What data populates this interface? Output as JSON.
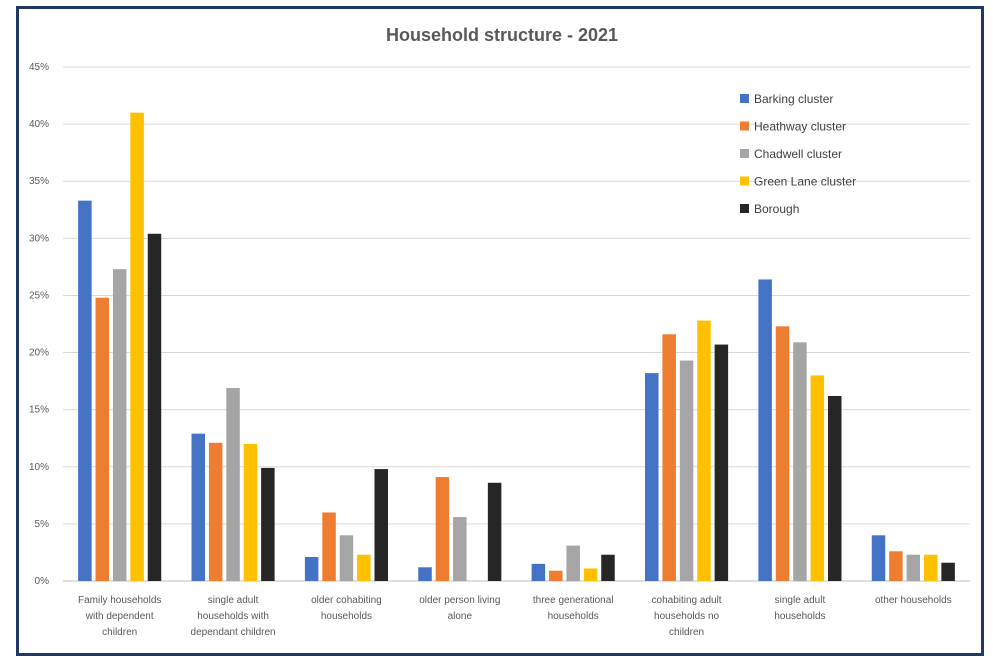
{
  "chart_data": {
    "type": "bar",
    "title": "Household structure - 2021",
    "xlabel": "",
    "ylabel": "",
    "ylim": [
      0,
      45
    ],
    "yticks": [
      "0%",
      "5%",
      "10%",
      "15%",
      "20%",
      "25%",
      "30%",
      "35%",
      "40%",
      "45%"
    ],
    "grid": true,
    "legend_position": "top-right",
    "categories": [
      [
        "Family households",
        "with dependent",
        "children"
      ],
      [
        "single adult",
        "households with",
        "dependant children"
      ],
      [
        "older cohabiting",
        "households"
      ],
      [
        "older person living",
        "alone"
      ],
      [
        "three generational",
        "households"
      ],
      [
        "cohabiting adult",
        "households no",
        "children"
      ],
      [
        "single adult",
        "households"
      ],
      [
        "other households"
      ]
    ],
    "series": [
      {
        "name": "Barking cluster",
        "color": "#4472c4",
        "values": [
          33.3,
          12.9,
          2.1,
          1.2,
          1.5,
          18.2,
          26.4,
          4.0
        ]
      },
      {
        "name": "Heathway cluster",
        "color": "#ed7d31",
        "values": [
          24.8,
          12.1,
          6.0,
          9.1,
          0.9,
          21.6,
          22.3,
          2.6
        ]
      },
      {
        "name": "Chadwell cluster",
        "color": "#a5a5a5",
        "values": [
          27.3,
          16.9,
          4.0,
          5.6,
          3.1,
          19.3,
          20.9,
          2.3
        ]
      },
      {
        "name": "Green Lane cluster",
        "color": "#ffc000",
        "values": [
          41.0,
          12.0,
          2.3,
          0,
          1.1,
          22.8,
          18.0,
          2.3
        ]
      },
      {
        "name": "Borough",
        "color": "#262626",
        "values": [
          30.4,
          9.9,
          9.8,
          8.6,
          2.3,
          20.7,
          16.2,
          1.6
        ]
      }
    ]
  }
}
